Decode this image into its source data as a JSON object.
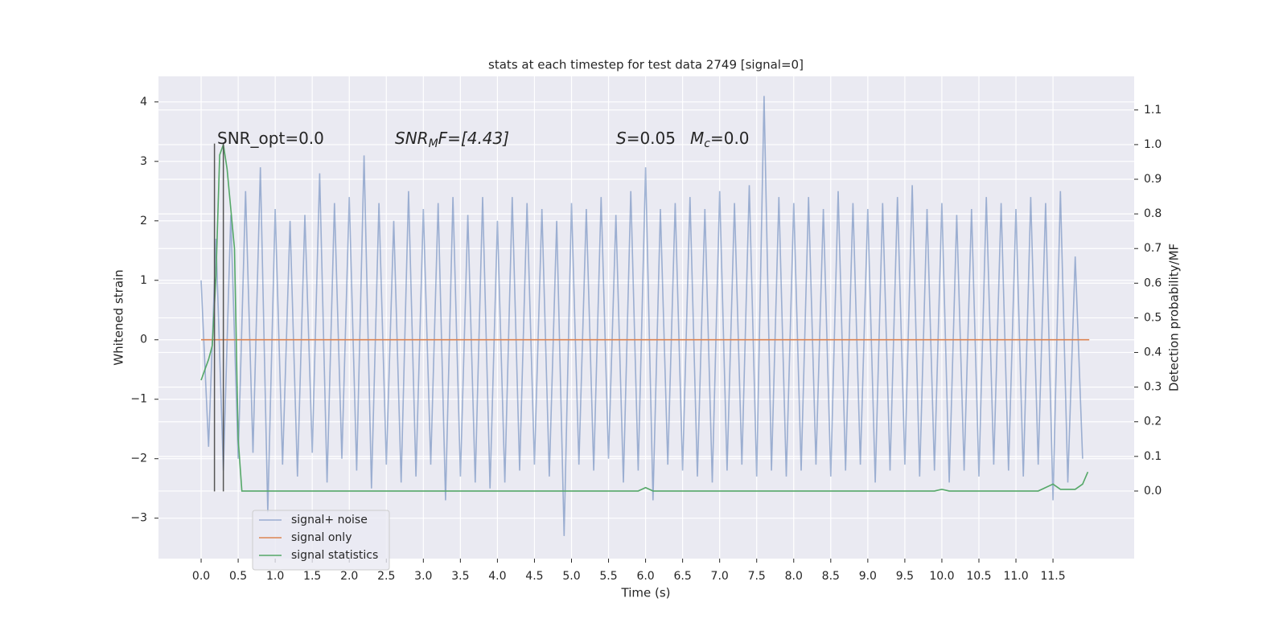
{
  "chart_data": {
    "type": "line",
    "title": "stats at each timestep for test data 2749 [signal=0]",
    "xlabel": "Time (s)",
    "ylabel": "Whitened strain",
    "y2label": "Detection probability/MF",
    "grid": true,
    "legend": "lower left",
    "xlim": [
      -0.576,
      12.596
    ],
    "ylim": [
      -3.68,
      4.43
    ],
    "y2lim": [
      -0.195,
      1.197
    ],
    "xticks": [
      {
        "value": 0,
        "label": "0.0"
      },
      {
        "value": 0.5,
        "label": "0.5"
      },
      {
        "value": 1,
        "label": "1.0"
      },
      {
        "value": 1.5,
        "label": "1.5"
      },
      {
        "value": 2,
        "label": "2.0"
      },
      {
        "value": 2.5,
        "label": "2.5"
      },
      {
        "value": 3,
        "label": "3.0"
      },
      {
        "value": 3.5,
        "label": "3.5"
      },
      {
        "value": 4,
        "label": "4.0"
      },
      {
        "value": 4.5,
        "label": "4.5"
      },
      {
        "value": 5,
        "label": "5.0"
      },
      {
        "value": 5.5,
        "label": "5.5"
      },
      {
        "value": 6,
        "label": "6.0"
      },
      {
        "value": 6.5,
        "label": "6.5"
      },
      {
        "value": 7,
        "label": "7.0"
      },
      {
        "value": 7.5,
        "label": "7.5"
      },
      {
        "value": 8,
        "label": "8.0"
      },
      {
        "value": 8.5,
        "label": "8.5"
      },
      {
        "value": 9,
        "label": "9.0"
      },
      {
        "value": 9.5,
        "label": "9.5"
      },
      {
        "value": 10,
        "label": "10.0"
      },
      {
        "value": 10.5,
        "label": "10.5"
      },
      {
        "value": 11,
        "label": "11.0"
      },
      {
        "value": 11.5,
        "label": "11.5"
      }
    ],
    "yticks": [
      {
        "value": -3,
        "label": "−3"
      },
      {
        "value": -2,
        "label": "−2"
      },
      {
        "value": -1,
        "label": "−1"
      },
      0,
      1,
      2,
      3,
      4
    ],
    "y2ticks": [
      {
        "value": 0,
        "label": "0.0"
      },
      {
        "value": 0.1,
        "label": "0.1"
      },
      {
        "value": 0.2,
        "label": "0.2"
      },
      {
        "value": 0.3,
        "label": "0.3"
      },
      {
        "value": 0.4,
        "label": "0.4"
      },
      {
        "value": 0.5,
        "label": "0.5"
      },
      {
        "value": 0.6,
        "label": "0.6"
      },
      {
        "value": 0.7,
        "label": "0.7"
      },
      {
        "value": 0.8,
        "label": "0.8"
      },
      {
        "value": 0.9,
        "label": "0.9"
      },
      {
        "value": 1,
        "label": "1.0"
      },
      {
        "value": 1.1,
        "label": "1.1"
      }
    ],
    "series": [
      {
        "name": "signal+ noise",
        "color": "#4c72b0",
        "opacity": 0.5,
        "x": [
          0,
          0.1,
          0.2,
          0.3,
          0.4,
          0.5,
          0.6,
          0.7,
          0.8,
          0.9,
          1,
          1.1,
          1.2,
          1.3,
          1.4,
          1.5,
          1.6,
          1.7,
          1.8,
          1.9,
          2,
          2.1,
          2.2,
          2.3,
          2.4,
          2.5,
          2.6,
          2.7,
          2.8,
          2.9,
          3,
          3.1,
          3.2,
          3.3,
          3.4,
          3.5,
          3.6,
          3.7,
          3.8,
          3.9,
          4,
          4.1,
          4.2,
          4.3,
          4.4,
          4.5,
          4.6,
          4.7,
          4.8,
          4.9,
          5,
          5.1,
          5.2,
          5.3,
          5.4,
          5.5,
          5.6,
          5.7,
          5.8,
          5.9,
          6,
          6.1,
          6.2,
          6.3,
          6.4,
          6.5,
          6.6,
          6.7,
          6.8,
          6.9,
          7,
          7.1,
          7.2,
          7.3,
          7.4,
          7.5,
          7.6,
          7.7,
          7.8,
          7.9,
          8,
          8.1,
          8.2,
          8.3,
          8.4,
          8.5,
          8.6,
          8.7,
          8.8,
          8.9,
          9,
          9.1,
          9.2,
          9.3,
          9.4,
          9.5,
          9.6,
          9.7,
          9.8,
          9.9,
          10,
          10.1,
          10.2,
          10.3,
          10.4,
          10.5,
          10.6,
          10.7,
          10.8,
          10.9,
          11,
          11.1,
          11.2,
          11.3,
          11.4,
          11.5,
          11.6,
          11.7,
          11.8,
          11.9
        ],
        "values": [
          1.0,
          -1.8,
          1.7,
          -2.2,
          2.1,
          -2.0,
          2.5,
          -1.9,
          2.9,
          -2.9,
          2.2,
          -2.1,
          2.0,
          -2.3,
          2.1,
          -1.9,
          2.8,
          -2.4,
          2.3,
          -2.0,
          2.4,
          -2.2,
          3.1,
          -2.5,
          2.3,
          -2.1,
          2.0,
          -2.4,
          2.5,
          -2.3,
          2.2,
          -2.1,
          2.3,
          -2.7,
          2.4,
          -2.3,
          2.1,
          -2.4,
          2.4,
          -2.5,
          2.0,
          -2.4,
          2.4,
          -2.2,
          2.3,
          -2.1,
          2.2,
          -2.3,
          2.0,
          -3.3,
          2.3,
          -2.1,
          2.2,
          -2.2,
          2.4,
          -2.0,
          2.1,
          -2.4,
          2.5,
          -2.2,
          2.9,
          -2.7,
          2.2,
          -2.1,
          2.3,
          -2.2,
          2.4,
          -2.3,
          2.2,
          -2.4,
          2.5,
          -2.2,
          2.3,
          -2.1,
          2.6,
          -2.3,
          4.1,
          -2.2,
          2.4,
          -2.3,
          2.3,
          -2.2,
          2.4,
          -2.1,
          2.2,
          -2.3,
          2.5,
          -2.2,
          2.3,
          -2.1,
          2.2,
          -2.4,
          2.3,
          -2.2,
          2.4,
          -2.1,
          2.6,
          -2.3,
          2.2,
          -2.2,
          2.3,
          -2.4,
          2.1,
          -2.2,
          2.2,
          -2.3,
          2.4,
          -2.1,
          2.3,
          -2.2,
          2.2,
          -2.3,
          2.4,
          -2.1,
          2.3,
          -2.7,
          2.5,
          -2.4,
          1.4,
          -2.0
        ]
      },
      {
        "name": "signal only",
        "color": "#dd8452",
        "x": [
          0,
          11.99
        ],
        "values": [
          0,
          0
        ]
      },
      {
        "name": "signal statistics",
        "color": "#55a868",
        "axis": "y2",
        "x": [
          0,
          0.1,
          0.15,
          0.2,
          0.25,
          0.3,
          0.35,
          0.45,
          0.5,
          0.55,
          1.0,
          5.9,
          6.0,
          6.1,
          9.9,
          10.0,
          10.1,
          11.3,
          11.5,
          11.6,
          11.8,
          11.9,
          11.97
        ],
        "values": [
          0.32,
          0.38,
          0.42,
          0.62,
          0.97,
          1.0,
          0.93,
          0.7,
          0.15,
          0.0,
          0,
          0,
          0.01,
          0,
          0,
          0.005,
          0,
          0,
          0.02,
          0.005,
          0.005,
          0.02,
          0.055
        ]
      }
    ],
    "vlines": {
      "x": [
        0.18,
        0.3
      ],
      "ymin": -2.55,
      "ymax": 3.3,
      "color": "#555555"
    },
    "annotations": [
      {
        "parts": [
          "SNR_opt=0.0"
        ]
      },
      {
        "parts": [
          "SNR",
          "M",
          "F=[4.43]"
        ]
      },
      {
        "parts": [
          "S",
          "=0.05"
        ]
      },
      {
        "parts": [
          "M",
          "c",
          "=0.0"
        ]
      }
    ]
  }
}
